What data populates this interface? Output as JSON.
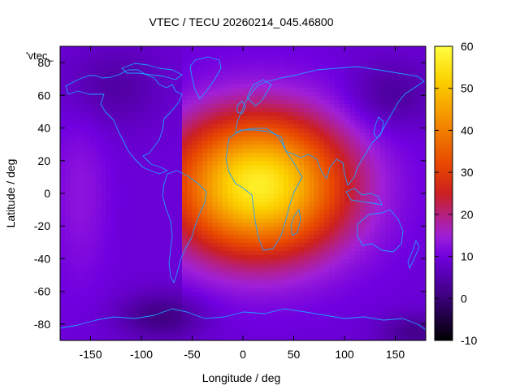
{
  "chart_data": {
    "type": "heatmap",
    "title": "VTEC / TECU 20260214_045.46800",
    "xlabel": "Longitude / deg",
    "ylabel": "Latitude / deg",
    "legend_label": "'vtec_",
    "xlim": [
      -180,
      180
    ],
    "ylim": [
      -90,
      90
    ],
    "x_ticks": [
      -150,
      -100,
      -50,
      0,
      50,
      100,
      150
    ],
    "y_ticks": [
      -80,
      -60,
      -40,
      -20,
      0,
      20,
      40,
      60,
      80
    ],
    "colorbar": {
      "range": [
        -10,
        60
      ],
      "ticks": [
        -10,
        0,
        10,
        20,
        30,
        40,
        50,
        60
      ],
      "palette": [
        "#000000",
        "#3a0078",
        "#7000e0",
        "#a020d8",
        "#cc2020",
        "#e84800",
        "#f48c00",
        "#fcd200",
        "#ffff40"
      ]
    },
    "color_value_stops": [
      -10,
      0,
      10,
      15,
      25,
      32,
      42,
      52,
      60
    ],
    "field_model": {
      "background": 9,
      "peak": {
        "value": 57,
        "lon": 15,
        "lat": 5,
        "sigma_lon": 60,
        "sigma_lat": 30
      },
      "trailing_edge_lon": -58,
      "regional_adjustments": [
        {
          "lon": -130,
          "lat": 65,
          "value": -5,
          "sigma_lon": 35,
          "sigma_lat": 18
        },
        {
          "lon": 145,
          "lat": 60,
          "value": -6,
          "sigma_lon": 30,
          "sigma_lat": 15
        },
        {
          "lon": -80,
          "lat": -75,
          "value": -8,
          "sigma_lon": 30,
          "sigma_lat": 10
        },
        {
          "lon": 170,
          "lat": -85,
          "value": -7,
          "sigma_lon": 25,
          "sigma_lat": 8
        },
        {
          "lon": -160,
          "lat": 0,
          "value": 4,
          "sigma_lon": 20,
          "sigma_lat": 40
        }
      ]
    }
  }
}
